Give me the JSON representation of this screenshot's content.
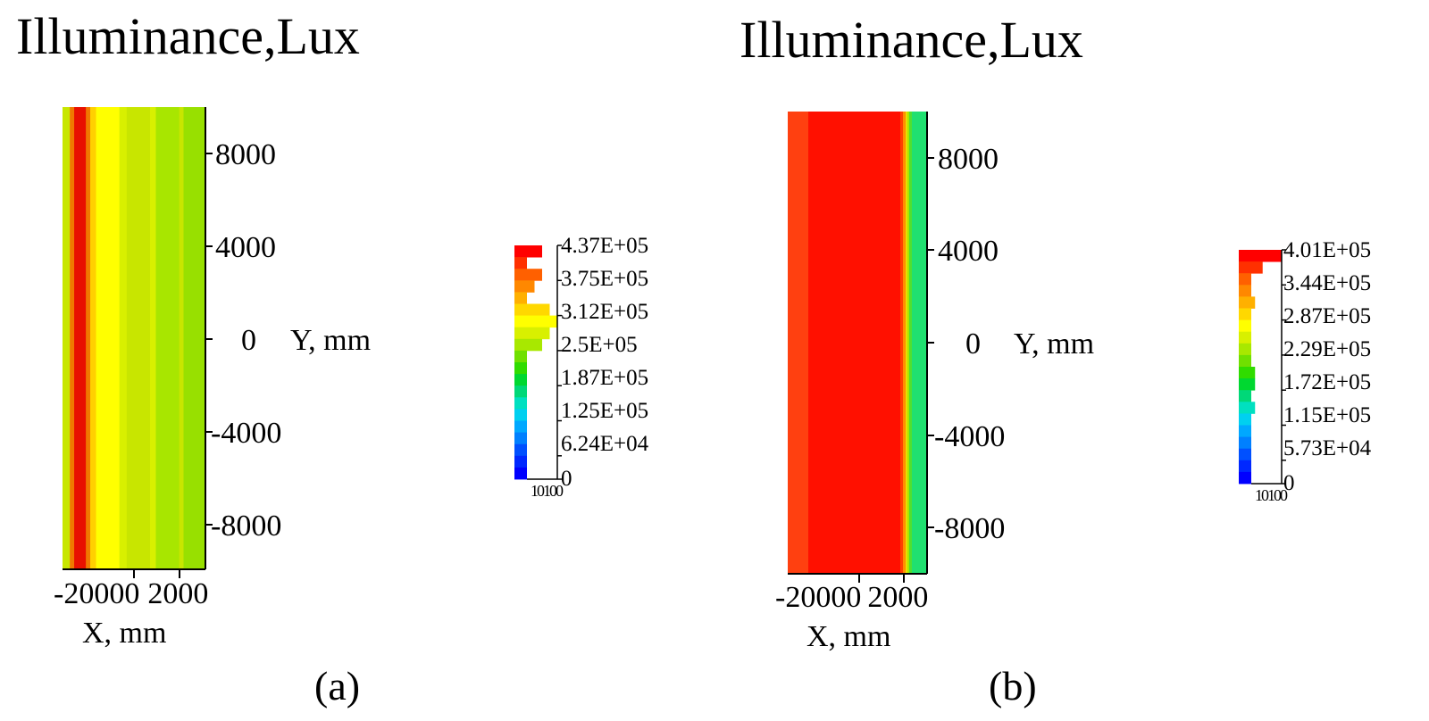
{
  "chart_data": [
    {
      "panel": "(a)",
      "type": "heatmap",
      "title": "Illuminance,Lux",
      "xlabel": "X, mm",
      "ylabel": "Y, mm",
      "x_ticks": [
        "-2",
        "0000",
        "2000"
      ],
      "y_ticks": [
        "8000",
        "4000",
        "0",
        "-4000",
        "-8000"
      ],
      "y_tick_values": [
        8000,
        4000,
        0,
        -4000,
        -8000
      ],
      "ylim": [
        -10000,
        10000
      ],
      "stripes_left_to_right": [
        {
          "color": "#c8e600",
          "weight": 1.0
        },
        {
          "color": "#f07800",
          "weight": 0.6
        },
        {
          "color": "#e81000",
          "weight": 1.6
        },
        {
          "color": "#f07800",
          "weight": 0.6
        },
        {
          "color": "#ffd000",
          "weight": 0.8
        },
        {
          "color": "#ffff00",
          "weight": 3.2
        },
        {
          "color": "#d8f000",
          "weight": 1.0
        },
        {
          "color": "#c8e600",
          "weight": 3.2
        },
        {
          "color": "#d8f000",
          "weight": 0.8
        },
        {
          "color": "#a8e600",
          "weight": 3.2
        },
        {
          "color": "#c8e600",
          "weight": 0.6
        },
        {
          "color": "#98e000",
          "weight": 3.0
        }
      ],
      "colorbar": {
        "labels": [
          "4.37E+05",
          "3.75E+05",
          "3.12E+05",
          "2.5E+05",
          "1.87E+05",
          "1.25E+05",
          "6.24E+04",
          "0"
        ],
        "histogram_axis_label": "10100",
        "histogram_bins_top_to_bottom": [
          2,
          0,
          2,
          1,
          0,
          3,
          4,
          3,
          2,
          0,
          0,
          0,
          0,
          0,
          0,
          0,
          0,
          0,
          0,
          0
        ]
      }
    },
    {
      "panel": "(b)",
      "type": "heatmap",
      "title": "Illuminance,Lux",
      "xlabel": "X, mm",
      "ylabel": "Y, mm",
      "x_ticks": [
        "-20000",
        "2000"
      ],
      "y_ticks": [
        "8000",
        "4000",
        "0",
        "-4000",
        "-8000"
      ],
      "y_tick_values": [
        8000,
        4000,
        0,
        -4000,
        -8000
      ],
      "ylim": [
        -10000,
        10000
      ],
      "stripes_left_to_right": [
        {
          "color": "#ff4010",
          "weight": 23
        },
        {
          "color": "#ff1000",
          "weight": 103
        },
        {
          "color": "#ff4000",
          "weight": 3
        },
        {
          "color": "#ff9000",
          "weight": 3
        },
        {
          "color": "#e8e000",
          "weight": 2
        },
        {
          "color": "#a8e800",
          "weight": 2
        },
        {
          "color": "#50e030",
          "weight": 3
        },
        {
          "color": "#20e070",
          "weight": 17
        }
      ],
      "colorbar": {
        "labels": [
          "4.01E+05",
          "3.44E+05",
          "2.87E+05",
          "2.29E+05",
          "1.72E+05",
          "1.15E+05",
          "5.73E+04",
          "0"
        ],
        "histogram_axis_label": "10100",
        "histogram_bins_top_to_bottom": [
          8,
          3,
          0,
          0,
          1,
          0,
          0,
          0,
          0,
          0,
          1,
          1,
          0,
          1,
          0,
          0,
          0,
          0,
          0,
          0
        ]
      }
    }
  ],
  "captions": [
    "(a)",
    "(b)"
  ],
  "colors": {
    "colorbar_top_to_bottom": [
      "#ff0000",
      "#ff3000",
      "#ff6000",
      "#ff8800",
      "#ffb000",
      "#ffd800",
      "#ffff00",
      "#d8f000",
      "#a8e800",
      "#70e000",
      "#30dc00",
      "#00d830",
      "#00d878",
      "#00e0c0",
      "#00d0f0",
      "#00a8ff",
      "#0080ff",
      "#0050ff",
      "#0028ff",
      "#0000ff"
    ]
  }
}
